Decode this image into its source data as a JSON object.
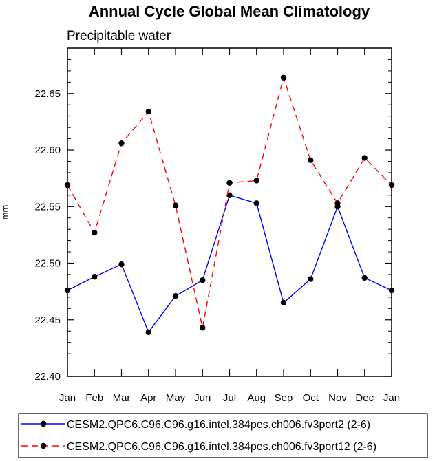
{
  "chart_data": {
    "type": "line",
    "title": "Annual Cycle Global Mean Climatology",
    "subtitle": "Precipitable water",
    "xlabel": "",
    "ylabel": "mm",
    "categories": [
      "Jan",
      "Feb",
      "Mar",
      "Apr",
      "May",
      "Jun",
      "Jul",
      "Aug",
      "Sep",
      "Oct",
      "Nov",
      "Dec",
      "Jan"
    ],
    "ylim": [
      22.4,
      22.69
    ],
    "yticks": [
      22.4,
      22.45,
      22.5,
      22.55,
      22.6,
      22.65
    ],
    "ytick_labels": [
      "22.40",
      "22.45",
      "22.50",
      "22.55",
      "22.60",
      "22.65"
    ],
    "grid": false,
    "legend_position": "bottom",
    "series": [
      {
        "name": "CESM2.QPC6.C96.C96.g16.intel.384pes.ch006.fv3port2 (2-6)",
        "color": "#0000ff",
        "dash": "solid",
        "values": [
          22.476,
          22.488,
          22.499,
          22.439,
          22.471,
          22.485,
          22.56,
          22.553,
          22.465,
          22.486,
          22.55,
          22.487,
          22.476
        ]
      },
      {
        "name": "CESM2.QPC6.C96.C96.g16.intel.384pes.ch006.fv3port12 (2-6)",
        "color": "#ff0000",
        "dash": "dashed",
        "values": [
          22.569,
          22.527,
          22.606,
          22.634,
          22.551,
          22.443,
          22.571,
          22.573,
          22.664,
          22.591,
          22.553,
          22.593,
          22.569
        ]
      }
    ]
  }
}
